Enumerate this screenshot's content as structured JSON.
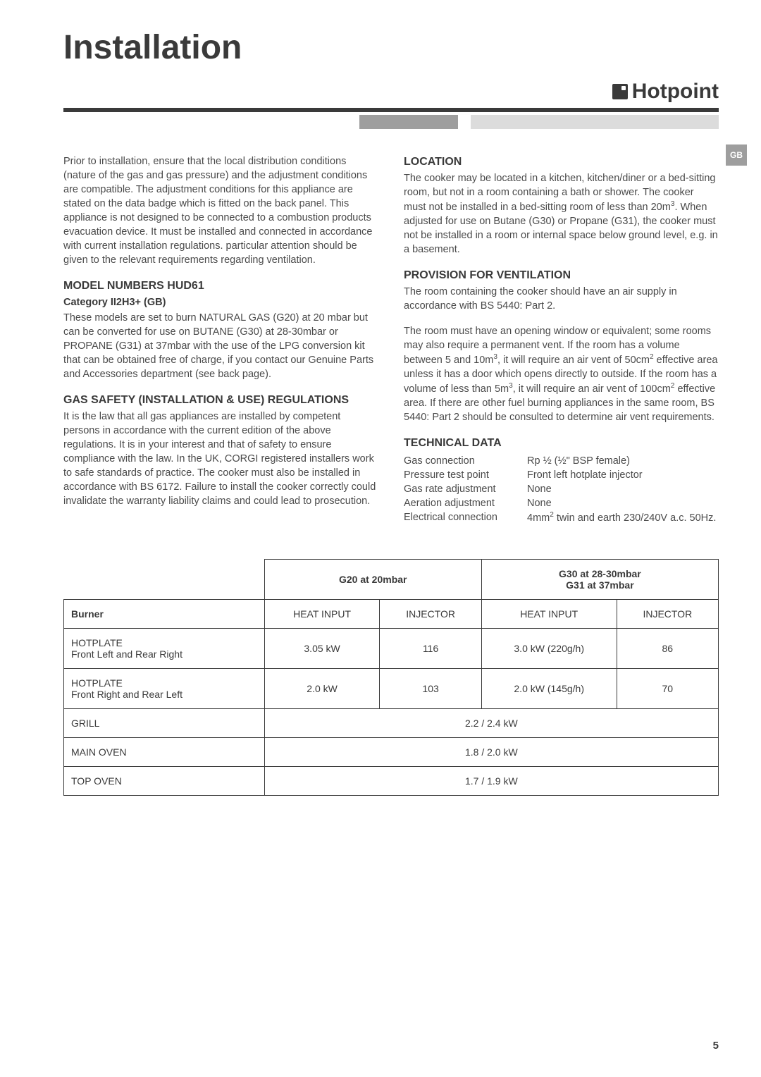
{
  "page_title": "Installation",
  "brand": "Hotpoint",
  "side_tab": "GB",
  "page_number": "5",
  "left_column": {
    "intro": "Prior to installation, ensure that the local distribution conditions (nature of the gas and gas pressure) and the adjustment conditions are compatible. The adjustment conditions for this appliance are stated on the data badge which is fitted on the back panel. This appliance is not designed to be connected to a combustion products evacuation device. It must be installed and connected in accordance with current installation regulations. particular attention should be given to the relevant requirements regarding ventilation.",
    "model_heading": "MODEL NUMBERS HUD61",
    "model_sub": "Category II2H3+ (GB)",
    "model_body": "These models are set to burn NATURAL GAS (G20) at 20 mbar but can be converted for use on BUTANE (G30) at 28-30mbar or PROPANE (G31) at 37mbar with the use of the LPG conversion kit that can be obtained free of charge, if you contact our Genuine Parts and Accessories department (see back page).",
    "safety_heading": "GAS SAFETY (INSTALLATION & USE) REGULATIONS",
    "safety_body": "It is the law that all gas appliances are installed by competent persons in accordance with the current edition of the above regulations. It is in your interest and that of safety to ensure compliance with the law. In the UK, CORGI registered installers work to safe standards of practice. The cooker must also be installed in accordance with BS 6172. Failure to install the cooker correctly could invalidate the warranty liability claims and could lead to prosecution."
  },
  "right_column": {
    "location_heading": "LOCATION",
    "location_body_pre": "The cooker may be located in a kitchen, kitchen/diner or a bed-sitting room, but not in a room containing a bath or shower. The cooker must not be installed in a bed-sitting room of less than 20m",
    "location_body_post": ". When adjusted for use on Butane (G30) or Propane (G31), the cooker must not be installed in a room or internal space below ground level, e.g. in a basement.",
    "vent_heading": "PROVISION FOR VENTILATION",
    "vent_p1": "The room containing the cooker should have an air supply in accordance with BS 5440: Part 2.",
    "vent_p2_a": "The room must have an opening window or equivalent; some rooms may also require a permanent vent. If the room has a volume between 5 and 10m",
    "vent_p2_b": ", it will require an air vent of 50cm",
    "vent_p2_c": " effective area unless it has a door which opens directly to outside. If the room has a volume of less than 5m",
    "vent_p2_d": ", it will require an air vent of 100cm",
    "vent_p2_e": " effective area. If there are other fuel burning appliances in the same room, BS 5440: Part 2 should be consulted to determine air vent requirements.",
    "tech_heading": "TECHNICAL DATA",
    "tech_rows": [
      {
        "label": "Gas connection",
        "value": "Rp ½ (½\" BSP female)"
      },
      {
        "label": "Pressure test point",
        "value": "Front left hotplate injector"
      },
      {
        "label": "Gas rate adjustment",
        "value": "None"
      },
      {
        "label": "Aeration adjustment",
        "value": "None"
      }
    ],
    "tech_elec_label": "Electrical connection",
    "tech_elec_val_a": "4mm",
    "tech_elec_val_b": " twin and earth 230/240V a.c. 50Hz."
  },
  "table": {
    "col_group_1": "G20 at 20mbar",
    "col_group_2a": "G30 at 28-30mbar",
    "col_group_2b": "G31 at 37mbar",
    "burner_label": "Burner",
    "sub_headers": [
      "HEAT INPUT",
      "INJECTOR",
      "HEAT INPUT",
      "INJECTOR"
    ],
    "rows": [
      {
        "label_a": "HOTPLATE",
        "label_b": "Front Left and Rear Right",
        "cells": [
          "3.05 kW",
          "116",
          "3.0 kW (220g/h)",
          "86"
        ]
      },
      {
        "label_a": "HOTPLATE",
        "label_b": "Front Right and Rear Left",
        "cells": [
          "2.0 kW",
          "103",
          "2.0 kW (145g/h)",
          "70"
        ]
      }
    ],
    "span_rows": [
      {
        "label": "GRILL",
        "value": "2.2 / 2.4 kW"
      },
      {
        "label": "MAIN OVEN",
        "value": "1.8 / 2.0 kW"
      },
      {
        "label": "TOP OVEN",
        "value": "1.7 / 1.9 kW"
      }
    ]
  }
}
